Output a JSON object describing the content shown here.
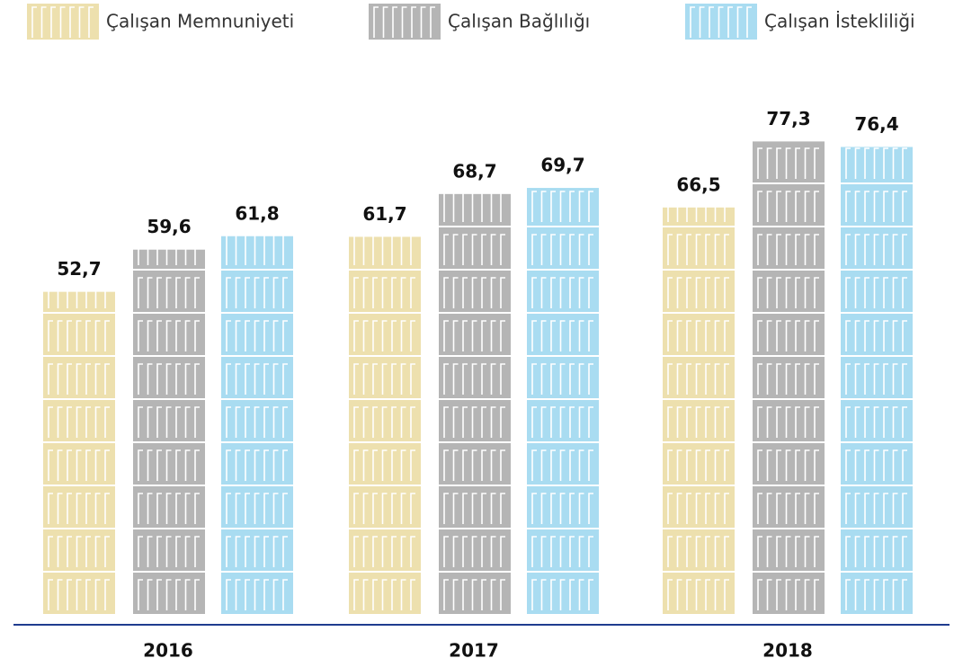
{
  "chart_data": {
    "type": "bar",
    "categories": [
      "2016",
      "2017",
      "2018"
    ],
    "series": [
      {
        "name": "Çalışan Memnuniyeti",
        "color": "#ede0ae",
        "values": [
          52.7,
          61.7,
          66.5
        ],
        "value_labels": [
          "52,7",
          "61,7",
          "66,5"
        ]
      },
      {
        "name": "Çalışan Bağlılığı",
        "color": "#b5b5b5",
        "values": [
          59.6,
          68.7,
          77.3
        ],
        "value_labels": [
          "59,6",
          "68,7",
          "77,3"
        ]
      },
      {
        "name": "Çalışan İstekliliği",
        "color": "#a9dcf1",
        "values": [
          61.8,
          69.7,
          76.4
        ],
        "value_labels": [
          "61,8",
          "69,7",
          "76,4"
        ]
      }
    ]
  }
}
